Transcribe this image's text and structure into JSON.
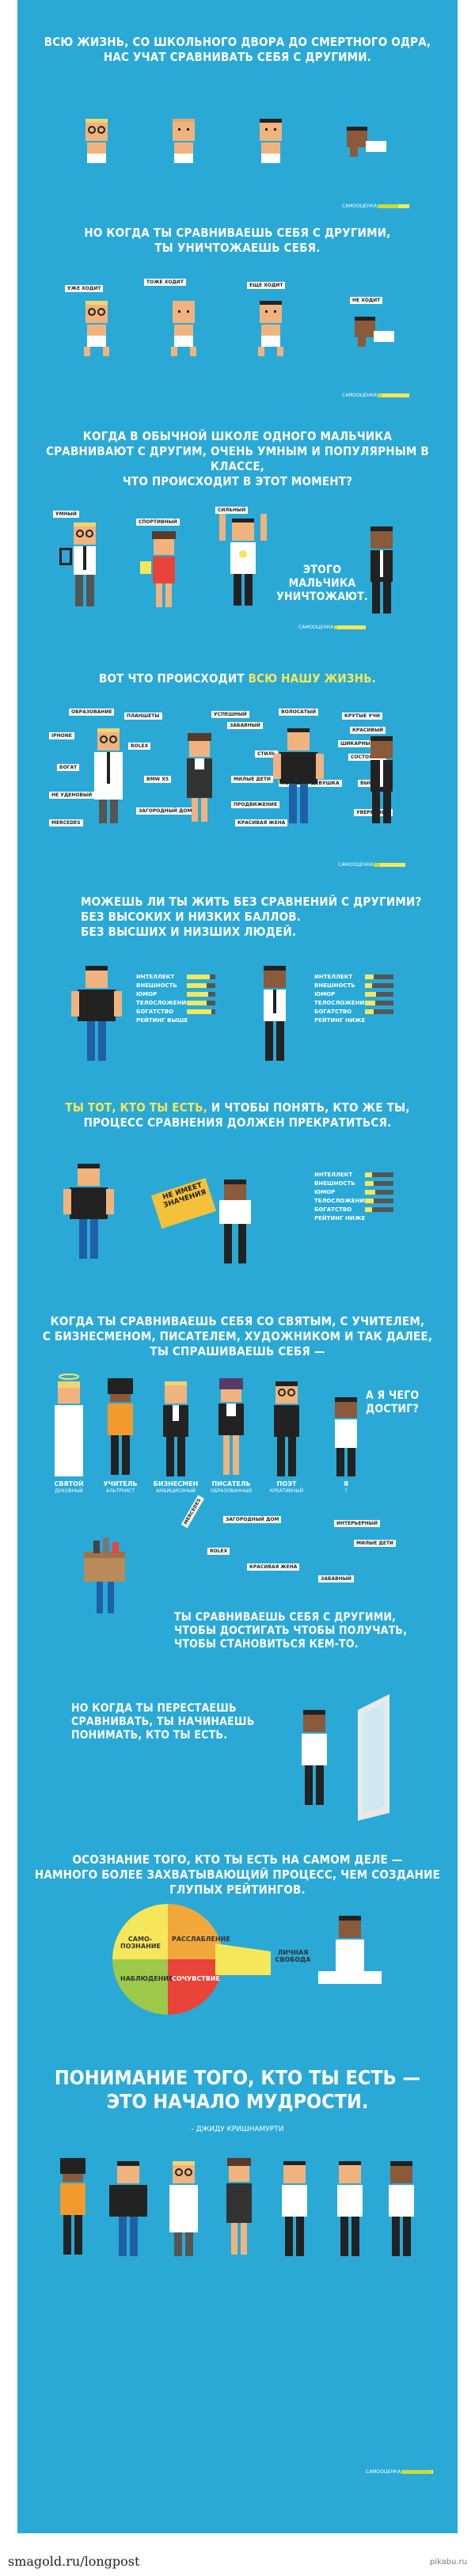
{
  "captions": {
    "s1": "ВСЮ ЖИЗНЬ, СО ШКОЛЬНОГО ДВОРА ДО СМЕРТНОГО ОДРА,\nНАС УЧАТ СРАВНИВАТЬ СЕБЯ С ДРУГИМИ.",
    "s2": "НО КОГДА ТЫ СРАВНИВАЕШЬ СЕБЯ С ДРУГИМИ,\nТЫ УНИЧТОЖАЕШЬ СЕБЯ.",
    "s3": "КОГДА В ОБЫЧНОЙ ШКОЛЕ ОДНОГО МАЛЬЧИКА\nСРАВНИВАЮТ С ДРУГИМ, ОЧЕНЬ УМНЫМ И ПОПУЛЯРНЫМ В КЛАССЕ,\nЧТО ПРОИСХОДИТ В ЭТОТ МОМЕНТ?",
    "s3b": "ЭТОГО\nМАЛЬЧИКА\nУНИЧТОЖАЮТ.",
    "s4_pre": "ВОТ ЧТО ПРОИСХОДИТ ",
    "s4_hl": "ВСЮ НАШУ ЖИЗНЬ.",
    "s5": "МОЖЕШЬ ЛИ ТЫ ЖИТЬ БЕЗ СРАВНЕНИЙ С ДРУГИМИ?\nБЕЗ ВЫСОКИХ И НИЗКИХ БАЛЛОВ.\nБЕЗ ВЫСШИХ И НИЗШИХ ЛЮДЕЙ.",
    "s6_a": "ТЫ ТОТ, КТО ТЫ ЕСТЬ,",
    "s6_b": " И ЧТОБЫ ПОНЯТЬ, КТО ЖЕ ТЫ,\nПРОЦЕСС СРАВНЕНИЯ ДОЛЖЕН ПРЕКРАТИТЬСЯ.",
    "s7": "КОГДА ТЫ СРАВНИВАЕШЬ СЕБЯ СО СВЯТЫМ, С УЧИТЕЛЕМ,\nС БИЗНЕСМЕНОМ, ПИСАТЕЛЕМ, ХУДОЖНИКОМ И ТАК ДАЛЕЕ,\nТЫ СПРАШИВАЕШЬ СЕБЯ —",
    "s7b": "А Я ЧЕГО\nДОСТИГ?",
    "s8": "ТЫ СРАВНИВАЕШЬ СЕБЯ С ДРУГИМИ,\nЧТОБЫ ДОСТИГАТЬ ЧТОБЫ ПОЛУЧАТЬ,\nЧТОБЫ СТАНОВИТЬСЯ КЕМ-ТО.",
    "s9": "НО КОГДА ТЫ ПЕРЕСТАЕШЬ\nСРАВНИВАТЬ, ТЫ НАЧИНАЕШЬ\nПОНИМАТЬ, КТО ТЫ ЕСТЬ.",
    "s10": "ОСОЗНАНИЕ ТОГО, КТО ТЫ ЕСТЬ НА САМОМ ДЕЛЕ —\nНАМНОГО БОЛЕЕ ЗАХВАТЫВАЮЩИЙ ПРОЦЕСС, ЧЕМ СОЗДАНИЕ\nГЛУПЫХ РЕЙТИНГОВ.",
    "final": "ПОНИМАНИЕ ТОГО, КТО ТЫ ЕСТЬ —\nЭТО НАЧАЛО МУДРОСТИ.",
    "author": "- ДЖИДУ КРИШНАМУРТИ"
  },
  "meter_label": "САМООЦЕНКА",
  "meters": {
    "m1": 0.65,
    "m2": 0.15,
    "m3": 0.1,
    "m4": 0.2,
    "m_final": 0.95
  },
  "babies_tags": [
    "УЖЕ ХОДИТ",
    "ТОЖЕ ХОДИТ",
    "ЕЩЕ ХОДИТ",
    "НЕ ХОДИТ"
  ],
  "school_tags": [
    "УМНЫЙ",
    "СПОРТИВНЫЙ",
    "СИЛЬНЫЙ"
  ],
  "life_tags": [
    "ОБРАЗОВАНИЕ",
    "ПЛАНШЕТЫ",
    "УСПЕШНЫЙ",
    "ЗАБАВНЫЙ",
    "ВОЛОСАТЫЙ",
    "КРУТЫЕ УЧИ",
    "IPHONE",
    "КРАСИВЫЙ",
    "ROLEX",
    "ШИКАРНЫЙ",
    "СТИЛЬ",
    "СОСТОЯНИЕ",
    "BMW X5",
    "МИЛЫЕ ДЕТИ",
    "ВЫСОКИЙ",
    "БОГАТ",
    "ХОРОШАЯ ДЕВУШКА",
    "ПРОДВИЖЕНИЕ",
    "ЗАГОРОДНЫЙ ДОМ",
    "КРАСИВАЯ ЖЕНА",
    "НЕ УДЕНОВЫЙ",
    "MERCEDES",
    "УВЕРЕННЫЙ"
  ],
  "stats_rows": [
    "ИНТЕЛЛЕКТ",
    "ВНЕШНОСТЬ",
    "ЮМОР",
    "ТЕЛОСЛОЖЕНИЕ",
    "БОГАТСТВО",
    "РЕЙТИНГ"
  ],
  "stats_left": {
    "values": [
      0.8,
      0.7,
      0.75,
      0.7,
      0.85
    ],
    "rating": "ВЫШЕ"
  },
  "stats_right": {
    "values": [
      0.3,
      0.25,
      0.4,
      0.35,
      0.3
    ],
    "rating": "НИЖЕ"
  },
  "stats_third": {
    "values": [
      0.25,
      0.3,
      0.35,
      0.3,
      0.25
    ],
    "rating": "НИЖЕ"
  },
  "sign_text": "НЕ ИМЕЕТ\nЗНАЧЕНИЯ",
  "people": [
    {
      "title": "СВЯТОЙ",
      "sub": "ДУХОВНЫЙ"
    },
    {
      "title": "УЧИТЕЛЬ",
      "sub": "АЛЬТРУИСТ"
    },
    {
      "title": "БИЗНЕСМЕН",
      "sub": "АМБИЦИОЗНЫЙ"
    },
    {
      "title": "ПИСАТЕЛЬ",
      "sub": "ОБРАЗОВАННЫЙ"
    },
    {
      "title": "ПОЭТ",
      "sub": "КРЕАТИВНЫЙ"
    },
    {
      "title": "Я",
      "sub": "?"
    }
  ],
  "box_tags": [
    "MERCEDES",
    "ЗАГОРОДНЫЙ ДОМ",
    "ИНТЕРЬЕРНЫЙ",
    "МИЛЫЕ ДЕТИ",
    "ROLEX",
    "КРАСИВАЯ ЖЕНА",
    "ЗАБАВНЫЙ"
  ],
  "pie_labels": [
    "САМО-\nПОЗНАНИЕ",
    "РАССЛАБЛЕНИЕ",
    "НАБЛЮДЕНИЕ",
    "СОЧУВСТВИЕ"
  ],
  "pie_callout": "ЛИЧНАЯ\nСВОБОДА",
  "colors": {
    "panel": "#2aa9d6",
    "yellow": "#f6e75a",
    "orange": "#f2a73b",
    "red": "#e8443a",
    "green": "#9cc94a"
  },
  "footer": {
    "left": "smagold.ru/longpost",
    "right": "pikabu.ru"
  }
}
